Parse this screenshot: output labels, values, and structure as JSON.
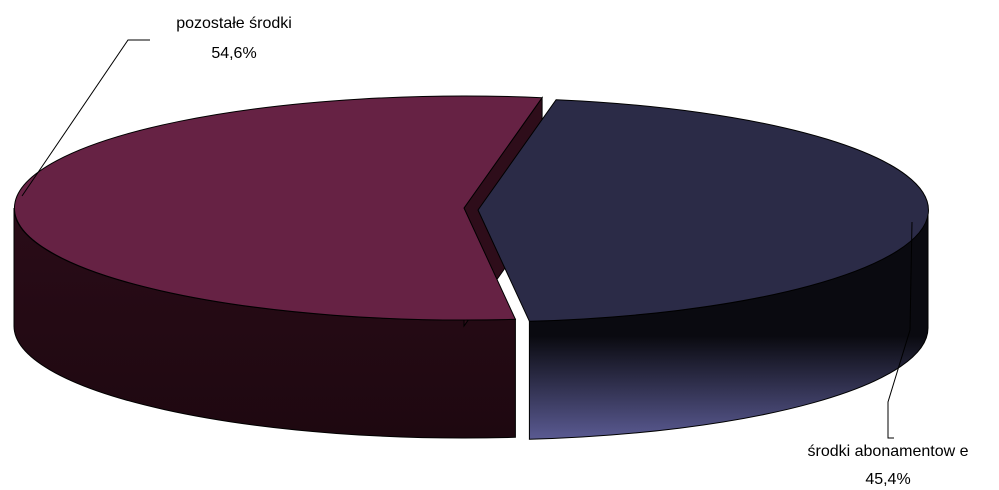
{
  "chart_data": {
    "type": "pie",
    "title": "",
    "style": "3d-exploded",
    "slices": [
      {
        "label": "pozostałe środki",
        "value": 54.6,
        "value_label": "54,6%",
        "color": "#662244"
      },
      {
        "label": "środki abonamentow e",
        "value": 45.4,
        "value_label": "45,4%",
        "color": "#2b2b47"
      }
    ]
  }
}
